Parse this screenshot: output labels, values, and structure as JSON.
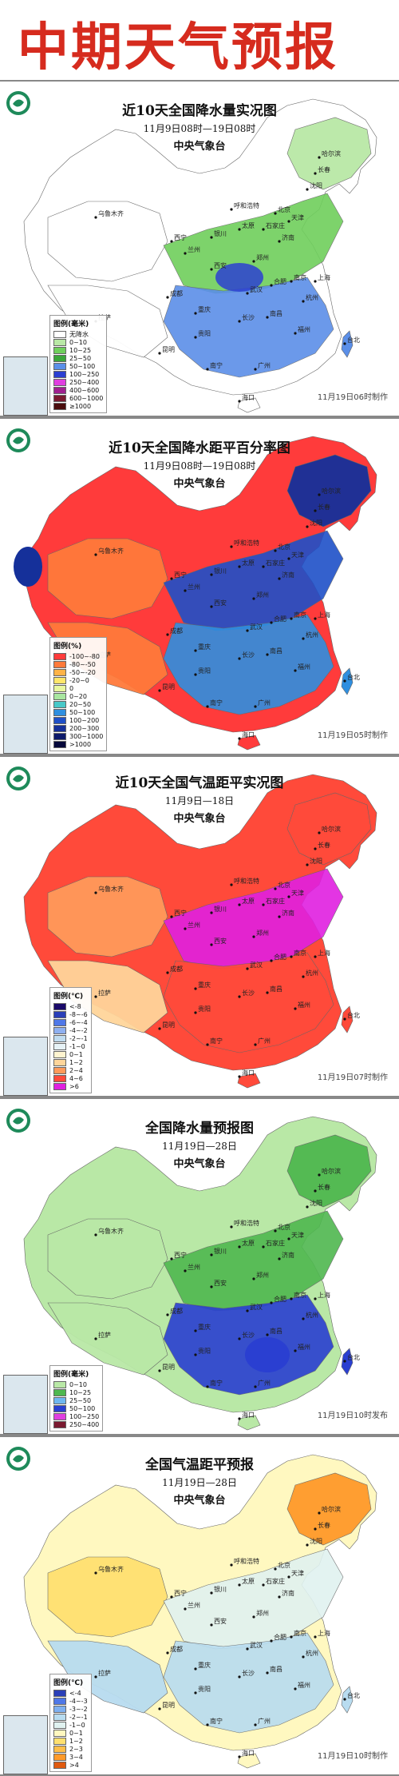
{
  "header": {
    "title": "中期天气预报"
  },
  "panels": [
    {
      "title": "近10天全国降水量实况图",
      "subtitle": "11月9日08时—19日08时",
      "agency": "中央气象台",
      "stamp": "11月19日06时制作",
      "legend_title": "图例(毫米)",
      "legend": [
        {
          "label": "无降水",
          "color": "#ffffff"
        },
        {
          "label": "0~10",
          "color": "#b9e8a6"
        },
        {
          "label": "10~25",
          "color": "#6fcf5c"
        },
        {
          "label": "25~50",
          "color": "#3aa63a"
        },
        {
          "label": "50~100",
          "color": "#5b8fe8"
        },
        {
          "label": "100~250",
          "color": "#2b3fd1"
        },
        {
          "label": "250~400",
          "color": "#e03fe0"
        },
        {
          "label": "400~600",
          "color": "#a02090"
        },
        {
          "label": "600~1000",
          "color": "#7a1a30"
        },
        {
          "label": "≥1000",
          "color": "#4a0d0d"
        }
      ]
    },
    {
      "title": "近10天全国降水距平百分率图",
      "subtitle": "11月9日08时—19日08时",
      "agency": "中央气象台",
      "stamp": "11月19日05时制作",
      "legend_title": "图例(%)",
      "legend": [
        {
          "label": "-100~-80",
          "color": "#ff3b3b"
        },
        {
          "label": "-80~-50",
          "color": "#ff7a3a"
        },
        {
          "label": "-50~-20",
          "color": "#ffb347"
        },
        {
          "label": "-20~0",
          "color": "#ffe66b"
        },
        {
          "label": "0",
          "color": "#e8f7a0"
        },
        {
          "label": "0~20",
          "color": "#a8e6a0"
        },
        {
          "label": "20~50",
          "color": "#48c8c8"
        },
        {
          "label": "50~100",
          "color": "#2f8fe0"
        },
        {
          "label": "100~200",
          "color": "#1f50c8"
        },
        {
          "label": "200~300",
          "color": "#15309a"
        },
        {
          "label": "300~1000",
          "color": "#0d1a6a"
        },
        {
          "label": ">1000",
          "color": "#06083a"
        }
      ]
    },
    {
      "title": "近10天全国气温距平实况图",
      "subtitle": "11月9日—18日",
      "agency": "中央气象台",
      "stamp": "11月19日07时制作",
      "legend_title": "图例(℃)",
      "legend": [
        {
          "label": "<-8",
          "color": "#1a0a6a"
        },
        {
          "label": "-8~-6",
          "color": "#2a3fb8"
        },
        {
          "label": "-6~-4",
          "color": "#4f78e8"
        },
        {
          "label": "-4~-2",
          "color": "#8fb0f0"
        },
        {
          "label": "-2~-1",
          "color": "#c0dcf0"
        },
        {
          "label": "-1~0",
          "color": "#e6f2f6"
        },
        {
          "label": "0~1",
          "color": "#fff4d0"
        },
        {
          "label": "1~2",
          "color": "#ffd59a"
        },
        {
          "label": "2~4",
          "color": "#ff9a5a"
        },
        {
          "label": "4~6",
          "color": "#ff4a3a"
        },
        {
          "label": ">6",
          "color": "#e020e0"
        }
      ]
    },
    {
      "title": "全国降水量预报图",
      "subtitle": "11月19日—28日",
      "agency": "中央气象台",
      "stamp": "11月19日10时发布",
      "legend_title": "图例(毫米)",
      "legend": [
        {
          "label": "0~10",
          "color": "#b9e8a6"
        },
        {
          "label": "10~25",
          "color": "#4fb84f"
        },
        {
          "label": "25~50",
          "color": "#6fb7f0"
        },
        {
          "label": "50~100",
          "color": "#2a3fd1"
        },
        {
          "label": "100~250",
          "color": "#e03fe0"
        },
        {
          "label": "250~400",
          "color": "#7a1a30"
        }
      ]
    },
    {
      "title": "全国气温距平预报",
      "subtitle": "11月19日—28日",
      "agency": "中央气象台",
      "stamp": "11月19日10时制作",
      "legend_title": "图例(℃)",
      "legend": [
        {
          "label": "<-4",
          "color": "#2a3fb8"
        },
        {
          "label": "-4~-3",
          "color": "#4f78e8"
        },
        {
          "label": "-3~-2",
          "color": "#7fb0f0"
        },
        {
          "label": "-2~-1",
          "color": "#b8dcf0"
        },
        {
          "label": "-1~0",
          "color": "#e0f2f0"
        },
        {
          "label": "0~1",
          "color": "#fff8c0"
        },
        {
          "label": "1~2",
          "color": "#ffe070"
        },
        {
          "label": "2~3",
          "color": "#ffbe4a"
        },
        {
          "label": "3~4",
          "color": "#ff9a2a"
        },
        {
          "label": ">4",
          "color": "#e05a10"
        }
      ]
    }
  ],
  "cities": [
    "乌鲁木齐",
    "西宁",
    "兰州",
    "银川",
    "呼和浩特",
    "北京",
    "天津",
    "石家庄",
    "太原",
    "济南",
    "郑州",
    "西安",
    "成都",
    "重庆",
    "武汉",
    "合肥",
    "南京",
    "上海",
    "杭州",
    "长沙",
    "南昌",
    "福州",
    "贵阳",
    "昆明",
    "南宁",
    "广州",
    "海口",
    "台北",
    "拉萨",
    "哈尔滨",
    "长春",
    "沈阳"
  ]
}
